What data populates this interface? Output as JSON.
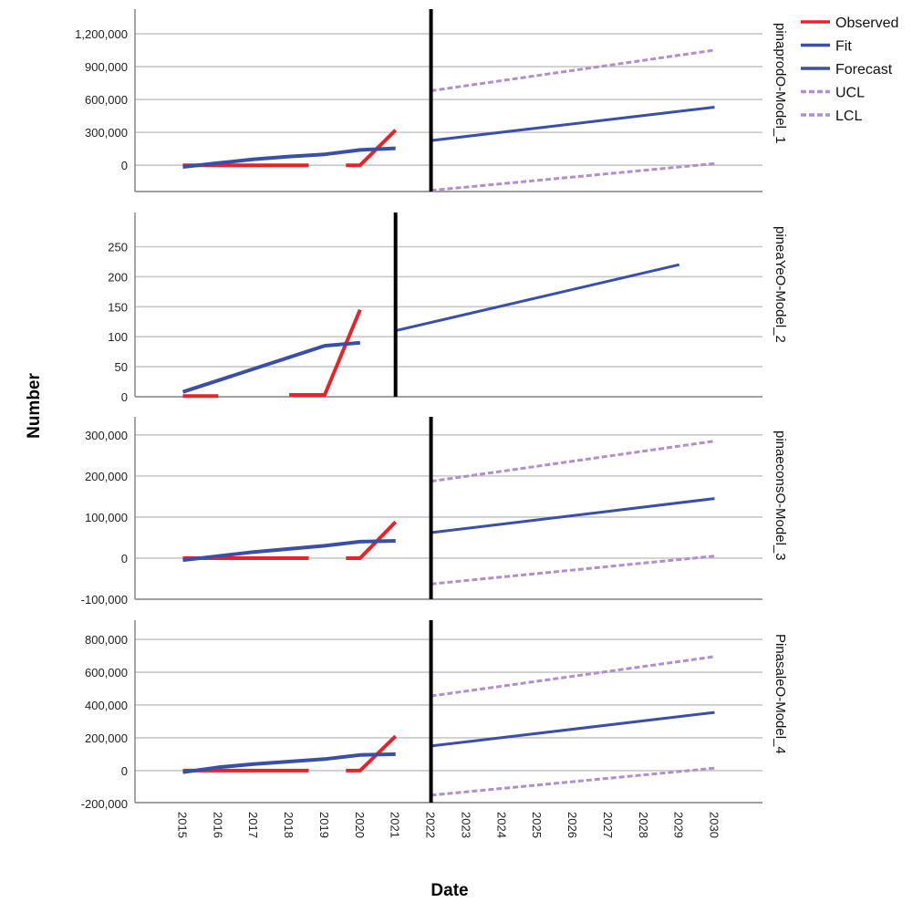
{
  "chart_data": {
    "type": "line",
    "xlabel": "Date",
    "ylabel": "Number",
    "x_ticks": [
      "2015",
      "2016",
      "2017",
      "2018",
      "2019",
      "2020",
      "2021",
      "2022",
      "2023",
      "2024",
      "2025",
      "2026",
      "2027",
      "2028",
      "2029",
      "2030"
    ],
    "xlim": [
      2013.65,
      2031.35
    ],
    "grid": "horizontal",
    "legend": {
      "placement": "top-right",
      "entries": [
        {
          "name": "Observed",
          "color": "#e8222b",
          "style": "solid"
        },
        {
          "name": "Fit",
          "color": "#3a4fa8",
          "style": "solid"
        },
        {
          "name": "Forecast",
          "color": "#3a4fa8",
          "style": "solid"
        },
        {
          "name": "UCL",
          "color": "#b08fcf",
          "style": "dashed"
        },
        {
          "name": "LCL",
          "color": "#b08fcf",
          "style": "dashed"
        }
      ]
    },
    "panels": [
      {
        "name": "pinaprodO-Model_1",
        "ylim": [
          -240000,
          1425000
        ],
        "y_ticks": [
          0,
          300000,
          600000,
          900000,
          1200000
        ],
        "y_tick_labels": [
          "0",
          "300,000",
          "600,000",
          "900,000",
          "1,200,000"
        ],
        "forecast_start": 2022,
        "series": {
          "Observed": [
            [
              [
                2015,
                0
              ],
              [
                2018.55,
                0
              ]
            ],
            [
              [
                2019.6,
                0
              ],
              [
                2020,
                0
              ],
              [
                2021,
                320000
              ]
            ]
          ],
          "Fit": [
            [
              [
                2015,
                -15000
              ],
              [
                2016,
                20000
              ],
              [
                2017,
                55000
              ],
              [
                2018,
                80000
              ],
              [
                2019,
                100000
              ],
              [
                2020,
                140000
              ],
              [
                2021,
                155000
              ]
            ]
          ],
          "Forecast": [
            [
              [
                2022,
                225000
              ],
              [
                2030,
                530000
              ]
            ]
          ],
          "UCL": [
            [
              [
                2022,
                680000
              ],
              [
                2030,
                1050000
              ]
            ]
          ],
          "LCL": [
            [
              [
                2022,
                -230000
              ],
              [
                2030,
                15000
              ]
            ]
          ]
        }
      },
      {
        "name": "pineaYeO-Model_2",
        "ylim": [
          0,
          307
        ],
        "y_ticks": [
          0,
          50,
          100,
          150,
          200,
          250
        ],
        "y_tick_labels": [
          "0",
          "50",
          "100",
          "150",
          "200",
          "250"
        ],
        "forecast_start": 2021,
        "series": {
          "Observed": [
            [
              [
                2015,
                1
              ],
              [
                2016,
                1
              ]
            ],
            [
              [
                2018,
                3
              ],
              [
                2019,
                3
              ],
              [
                2020,
                145
              ]
            ]
          ],
          "Fit": [
            [
              [
                2015,
                8
              ],
              [
                2019,
                85
              ],
              [
                2020,
                90
              ]
            ]
          ],
          "Forecast": [
            [
              [
                2021,
                110
              ],
              [
                2029,
                220
              ]
            ]
          ],
          "UCL": [],
          "LCL": []
        }
      },
      {
        "name": "pinaeconsO-Model_3",
        "ylim": [
          -100000,
          344000
        ],
        "y_ticks": [
          -100000,
          0,
          100000,
          200000,
          300000
        ],
        "y_tick_labels": [
          "-100,000",
          "0",
          "100,000",
          "200,000",
          "300,000"
        ],
        "forecast_start": 2022,
        "series": {
          "Observed": [
            [
              [
                2015,
                0
              ],
              [
                2018.55,
                0
              ]
            ],
            [
              [
                2019.6,
                0
              ],
              [
                2020,
                0
              ],
              [
                2021,
                88000
              ]
            ]
          ],
          "Fit": [
            [
              [
                2015,
                -5000
              ],
              [
                2017,
                15000
              ],
              [
                2019,
                30000
              ],
              [
                2020,
                40000
              ],
              [
                2021,
                42000
              ]
            ]
          ],
          "Forecast": [
            [
              [
                2022,
                62000
              ],
              [
                2030,
                145000
              ]
            ]
          ],
          "UCL": [
            [
              [
                2022,
                187000
              ],
              [
                2030,
                285000
              ]
            ]
          ],
          "LCL": [
            [
              [
                2022,
                -63000
              ],
              [
                2030,
                5000
              ]
            ]
          ]
        }
      },
      {
        "name": "PinasaleO-Model_4",
        "ylim": [
          -195000,
          917000
        ],
        "y_ticks": [
          -200000,
          0,
          200000,
          400000,
          600000,
          800000
        ],
        "y_tick_labels": [
          "-200,000",
          "0",
          "200,000",
          "400,000",
          "600,000",
          "800,000"
        ],
        "forecast_start": 2022,
        "series": {
          "Observed": [
            [
              [
                2015,
                0
              ],
              [
                2018.55,
                0
              ]
            ],
            [
              [
                2019.6,
                0
              ],
              [
                2020,
                0
              ],
              [
                2021,
                210000
              ]
            ]
          ],
          "Fit": [
            [
              [
                2015,
                -10000
              ],
              [
                2016,
                20000
              ],
              [
                2017,
                40000
              ],
              [
                2019,
                70000
              ],
              [
                2020,
                95000
              ],
              [
                2021,
                100000
              ]
            ]
          ],
          "Forecast": [
            [
              [
                2022,
                150000
              ],
              [
                2030,
                355000
              ]
            ]
          ],
          "UCL": [
            [
              [
                2022,
                455000
              ],
              [
                2030,
                695000
              ]
            ]
          ],
          "LCL": [
            [
              [
                2022,
                -150000
              ],
              [
                2030,
                15000
              ]
            ]
          ]
        }
      }
    ]
  }
}
